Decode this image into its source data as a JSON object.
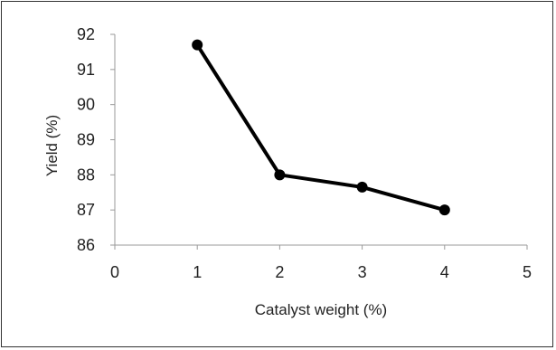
{
  "chart_data": {
    "type": "line",
    "title": "",
    "xlabel": "Catalyst weight (%)",
    "ylabel": "Yield (%)",
    "xlim": [
      0,
      5
    ],
    "ylim": [
      86,
      92
    ],
    "x_ticks": [
      "0",
      "1",
      "2",
      "3",
      "4",
      "5"
    ],
    "y_ticks": [
      "86",
      "87",
      "88",
      "89",
      "90",
      "91",
      "92"
    ],
    "grid": false,
    "legend": "none",
    "series": [
      {
        "x": [
          1,
          2,
          3,
          4
        ],
        "y": [
          91.7,
          88.0,
          87.65,
          87.0
        ],
        "color": "#000000"
      }
    ]
  }
}
